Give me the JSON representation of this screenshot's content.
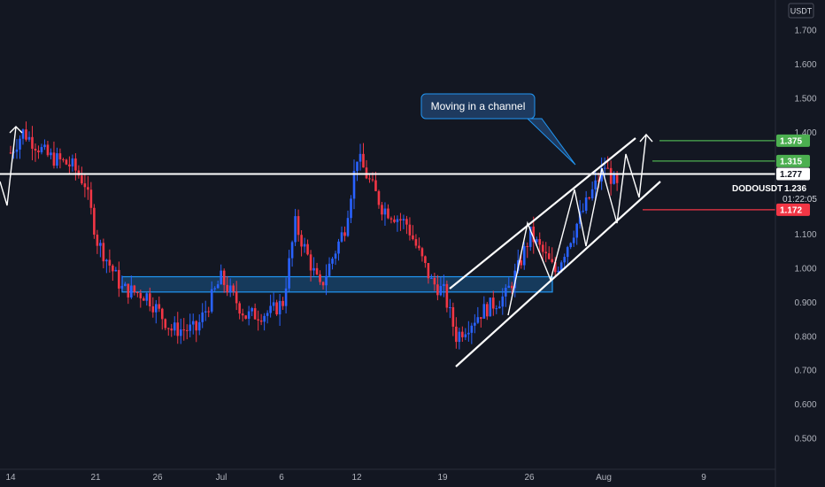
{
  "chart_data": {
    "type": "candlestick",
    "symbol": "DODOUSDT",
    "currency": "USDT",
    "countdown": "01:22:05",
    "y_axis": {
      "ticks": [
        "1.700",
        "1.600",
        "1.500",
        "1.400",
        "1.100",
        "1.000",
        "0.900",
        "0.800",
        "0.700",
        "0.600",
        "0.500"
      ],
      "range": [
        0.44,
        1.86
      ]
    },
    "x_axis": {
      "ticks": [
        "14",
        "21",
        "26",
        "Jul",
        "6",
        "12",
        "19",
        "26",
        "Aug",
        "9"
      ]
    },
    "price_levels": [
      {
        "label": "1.375",
        "value": 1.375,
        "color": "#4caf50",
        "role": "target-2"
      },
      {
        "label": "1.315",
        "value": 1.315,
        "color": "#4caf50",
        "role": "target-1"
      },
      {
        "label": "1.277",
        "value": 1.277,
        "color": "#ffffff",
        "role": "resistance"
      },
      {
        "label": "1.236",
        "value": 1.236,
        "color": "#ffffff",
        "role": "last-price"
      },
      {
        "label": "1.172",
        "value": 1.172,
        "color": "#f23645",
        "role": "stop"
      }
    ],
    "support_zone": {
      "top": 0.975,
      "bottom": 0.93
    },
    "channel": {
      "upper": {
        "start": [
          "19",
          0.94
        ],
        "end": [
          "Aug",
          1.39
        ]
      },
      "lower": {
        "start": [
          "19",
          0.72
        ],
        "end": [
          "Aug",
          1.21
        ]
      }
    },
    "annotation": "Moving in a channel",
    "price_path": [
      [
        "14",
        1.34
      ],
      [
        "15",
        1.4
      ],
      [
        "17",
        1.33
      ],
      [
        "19",
        1.3
      ],
      [
        "20",
        1.25
      ],
      [
        "21",
        1.08
      ],
      [
        "23",
        0.94
      ],
      [
        "25",
        0.92
      ],
      [
        "27",
        0.82
      ],
      [
        "29",
        0.82
      ],
      [
        "Jul",
        0.97
      ],
      [
        "3",
        0.86
      ],
      [
        "5",
        0.87
      ],
      [
        "6",
        0.9
      ],
      [
        "7",
        1.13
      ],
      [
        "9",
        0.94
      ],
      [
        "11",
        1.12
      ],
      [
        "12",
        1.33
      ],
      [
        "14",
        1.18
      ],
      [
        "16",
        1.13
      ],
      [
        "18",
        0.96
      ],
      [
        "19",
        0.93
      ],
      [
        "20",
        0.8
      ],
      [
        "22",
        0.87
      ],
      [
        "24",
        0.92
      ],
      [
        "25",
        1.0
      ],
      [
        "26",
        1.1
      ],
      [
        "28",
        0.99
      ],
      [
        "30",
        1.15
      ],
      [
        "Aug",
        1.3
      ],
      [
        "2",
        1.236
      ]
    ]
  }
}
